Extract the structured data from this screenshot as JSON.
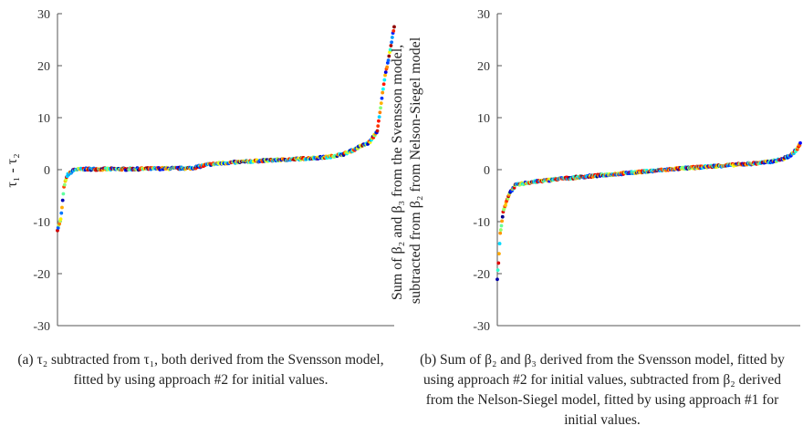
{
  "figures": [
    {
      "id": "a",
      "caption": "(a) τ₂ subtracted from τ₁, both derived from the Svensson model, fitted by using approach #2 for initial values.",
      "ylabel": "τ₁ - τ₂"
    },
    {
      "id": "b",
      "caption": "(b) Sum of β₂ and β₃ derived from the Svensson model, fitted by using approach #2 for initial values, subtracted from β₂ derived from the Nelson-Siegel model, fitted by using approach #1 for initial values.",
      "ylabel_lines": [
        "Sum of β₂ and β₃ from the Svensson model,",
        "subtracted from β₂ from Nelson-Siegel model"
      ]
    }
  ],
  "chart_data": [
    {
      "type": "scatter",
      "title": "",
      "xlabel": "",
      "ylabel": "τ₁ - τ₂",
      "ylim": [
        -30,
        30
      ],
      "yticks": [
        30,
        20,
        10,
        0,
        -10,
        -20,
        -30
      ],
      "x_axis_visible": false,
      "colors": "jet colormap per point",
      "x": [
        0,
        0.01,
        0.02,
        0.03,
        0.05,
        0.08,
        0.12,
        0.2,
        0.3,
        0.4,
        0.45,
        0.5,
        0.6,
        0.7,
        0.8,
        0.85,
        0.88,
        0.9,
        0.92,
        0.93,
        0.95,
        0.96,
        0.97,
        0.985,
        1.0
      ],
      "values": [
        -11.5,
        -9.5,
        -3.0,
        -1.0,
        0.0,
        0.1,
        0.1,
        0.1,
        0.2,
        0.3,
        1.0,
        1.3,
        1.7,
        2.0,
        2.4,
        3.0,
        3.8,
        4.5,
        5.0,
        5.5,
        7.5,
        12.0,
        17.0,
        22.0,
        27.5
      ]
    },
    {
      "type": "scatter",
      "title": "",
      "xlabel": "",
      "ylabel": "Sum of β₂ and β₃ from the Svensson model, subtracted from β₂ from Nelson-Siegel model",
      "ylim": [
        -30,
        30
      ],
      "yticks": [
        30,
        20,
        10,
        0,
        -10,
        -20,
        -30
      ],
      "x_axis_visible": false,
      "colors": "jet colormap per point",
      "x": [
        0,
        0.005,
        0.01,
        0.02,
        0.04,
        0.06,
        0.1,
        0.2,
        0.3,
        0.4,
        0.5,
        0.6,
        0.7,
        0.8,
        0.85,
        0.9,
        0.94,
        0.97,
        0.99,
        1.0
      ],
      "values": [
        -21.0,
        -17.0,
        -12.0,
        -8.0,
        -4.5,
        -3.0,
        -2.5,
        -1.8,
        -1.3,
        -0.8,
        -0.3,
        0.2,
        0.6,
        1.0,
        1.2,
        1.5,
        2.0,
        2.8,
        4.0,
        5.0
      ]
    }
  ]
}
